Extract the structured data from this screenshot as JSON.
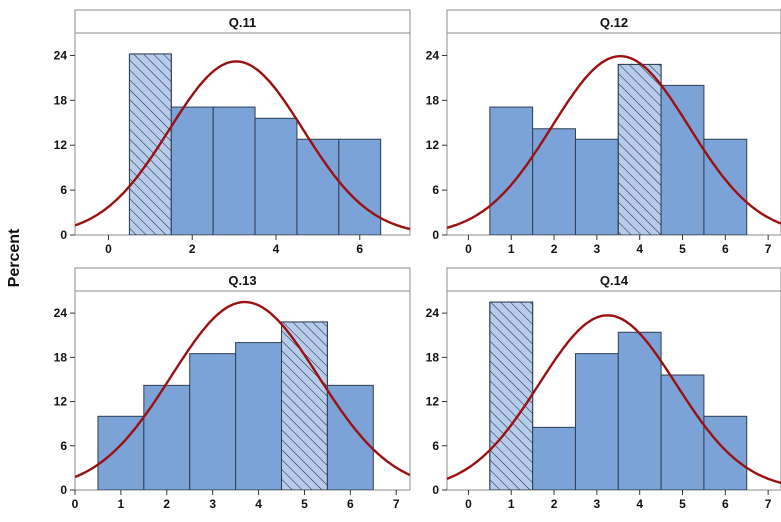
{
  "y_axis_label": "Percent",
  "colors": {
    "bar_fill": "#7ba3d8",
    "bar_stroke": "#2f3e52",
    "curve": "#9b1111",
    "hatch": "#2f3e52",
    "panel_border": "#8c8c8c",
    "header_fill": "#ffffff"
  },
  "chart_data": [
    {
      "type": "bar",
      "subtype": "histogram-with-normal-fit",
      "title": "Q.11",
      "bars": [
        {
          "x": 1,
          "value": 24.2,
          "hatched": true
        },
        {
          "x": 2,
          "value": 17.1,
          "hatched": false
        },
        {
          "x": 3,
          "value": 17.1,
          "hatched": false
        },
        {
          "x": 4,
          "value": 15.6,
          "hatched": false
        },
        {
          "x": 5,
          "value": 12.8,
          "hatched": false
        },
        {
          "x": 6,
          "value": 12.8,
          "hatched": false
        }
      ],
      "normal_fit": {
        "mean": 3.05,
        "peak": 23.2
      },
      "xlim": [
        -0.8,
        7.2
      ],
      "ylim": [
        0,
        27
      ],
      "x_ticks": [
        "0",
        "2",
        "4",
        "6"
      ],
      "x_tick_values": [
        0,
        2,
        4,
        6
      ],
      "y_ticks": [
        "0",
        "6",
        "12",
        "18",
        "24"
      ],
      "y_tick_values": [
        0,
        6,
        12,
        18,
        24
      ],
      "show_y_ticks": true
    },
    {
      "type": "bar",
      "subtype": "histogram-with-normal-fit",
      "title": "Q.12",
      "bars": [
        {
          "x": 1,
          "value": 17.1,
          "hatched": false
        },
        {
          "x": 2,
          "value": 14.2,
          "hatched": false
        },
        {
          "x": 3,
          "value": 12.8,
          "hatched": false
        },
        {
          "x": 4,
          "value": 22.8,
          "hatched": true
        },
        {
          "x": 5,
          "value": 20.0,
          "hatched": false
        },
        {
          "x": 6,
          "value": 12.8,
          "hatched": false
        }
      ],
      "normal_fit": {
        "mean": 3.55,
        "peak": 23.9
      },
      "xlim": [
        -0.5,
        7.3
      ],
      "ylim": [
        0,
        27
      ],
      "x_ticks": [
        "0",
        "1",
        "2",
        "3",
        "4",
        "5",
        "6",
        "7"
      ],
      "x_tick_values": [
        0,
        1,
        2,
        3,
        4,
        5,
        6,
        7
      ],
      "y_ticks": [
        "0",
        "6",
        "12",
        "18",
        "24"
      ],
      "y_tick_values": [
        0,
        6,
        12,
        18,
        24
      ],
      "show_y_ticks": true
    },
    {
      "type": "bar",
      "subtype": "histogram-with-normal-fit",
      "title": "Q.13",
      "bars": [
        {
          "x": 1,
          "value": 10.0,
          "hatched": false
        },
        {
          "x": 2,
          "value": 14.2,
          "hatched": false
        },
        {
          "x": 3,
          "value": 18.5,
          "hatched": false
        },
        {
          "x": 4,
          "value": 20.0,
          "hatched": false
        },
        {
          "x": 5,
          "value": 22.8,
          "hatched": true
        },
        {
          "x": 6,
          "value": 14.2,
          "hatched": false
        }
      ],
      "normal_fit": {
        "mean": 3.7,
        "peak": 25.5
      },
      "xlim": [
        0,
        7.3
      ],
      "ylim": [
        0,
        27
      ],
      "x_ticks": [
        "0",
        "1",
        "2",
        "3",
        "4",
        "5",
        "6",
        "7"
      ],
      "x_tick_values": [
        0,
        1,
        2,
        3,
        4,
        5,
        6,
        7
      ],
      "y_ticks": [
        "0",
        "6",
        "12",
        "18",
        "24"
      ],
      "y_tick_values": [
        0,
        6,
        12,
        18,
        24
      ],
      "show_y_ticks": true
    },
    {
      "type": "bar",
      "subtype": "histogram-with-normal-fit",
      "title": "Q.14",
      "bars": [
        {
          "x": 1,
          "value": 25.5,
          "hatched": true
        },
        {
          "x": 2,
          "value": 8.5,
          "hatched": false
        },
        {
          "x": 3,
          "value": 18.5,
          "hatched": false
        },
        {
          "x": 4,
          "value": 21.4,
          "hatched": false
        },
        {
          "x": 5,
          "value": 15.6,
          "hatched": false
        },
        {
          "x": 6,
          "value": 10.0,
          "hatched": false
        }
      ],
      "normal_fit": {
        "mean": 3.25,
        "peak": 23.7
      },
      "xlim": [
        -0.5,
        7.3
      ],
      "ylim": [
        0,
        27
      ],
      "x_ticks": [
        "0",
        "1",
        "2",
        "3",
        "4",
        "5",
        "6",
        "7"
      ],
      "x_tick_values": [
        0,
        1,
        2,
        3,
        4,
        5,
        6,
        7
      ],
      "y_ticks": [
        "0",
        "6",
        "12",
        "18",
        "24"
      ],
      "y_tick_values": [
        0,
        6,
        12,
        18,
        24
      ],
      "show_y_ticks": true
    }
  ]
}
